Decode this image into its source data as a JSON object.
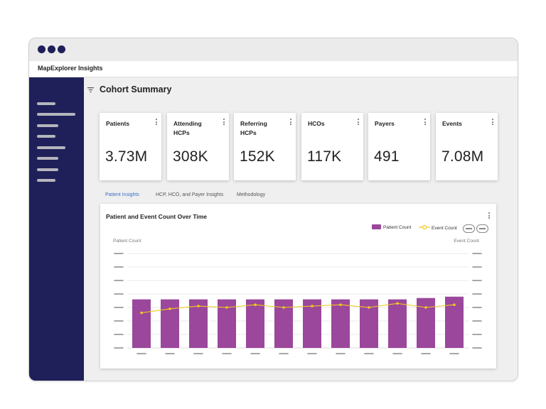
{
  "app": {
    "title": "MapExplorer Insights"
  },
  "page": {
    "title": "Cohort Summary"
  },
  "colors": {
    "navy": "#1f2059",
    "bar": "#9b479b",
    "line": "#f0c81e",
    "accent": "#3a6fc4"
  },
  "cards": [
    {
      "label": "Patients",
      "value": "3.73M"
    },
    {
      "label": "Attending HCPs",
      "value": "308K"
    },
    {
      "label": "Referring HCPs",
      "value": "152K"
    },
    {
      "label": "HCOs",
      "value": "117K"
    },
    {
      "label": "Payers",
      "value": "491"
    },
    {
      "label": "Events",
      "value": "7.08M"
    }
  ],
  "tabs": [
    {
      "label": "Patient Insights",
      "active": true
    },
    {
      "label": "HCP, HCO, and Payer Insights",
      "active": false
    },
    {
      "label": "Methodology",
      "active": false
    }
  ],
  "chart_data": {
    "type": "bar",
    "title": "Patient and Event Count Over Time",
    "ylabel": "Patient Count",
    "y2label": "Event Count",
    "legend": [
      "Patient Count",
      "Event Count"
    ],
    "ylim": [
      0,
      7
    ],
    "y2lim": [
      0,
      7
    ],
    "categories": [
      "",
      "",
      "",
      "",
      "",
      "",
      "",
      "",
      "",
      "",
      "",
      ""
    ],
    "series": [
      {
        "name": "Patient Count",
        "kind": "bar",
        "values": [
          3.6,
          3.6,
          3.6,
          3.6,
          3.6,
          3.6,
          3.6,
          3.6,
          3.6,
          3.6,
          3.7,
          3.8
        ]
      },
      {
        "name": "Event Count",
        "kind": "line",
        "values": [
          2.6,
          2.9,
          3.1,
          3.0,
          3.2,
          3.0,
          3.1,
          3.2,
          3.0,
          3.3,
          3.0,
          3.2
        ]
      }
    ]
  }
}
